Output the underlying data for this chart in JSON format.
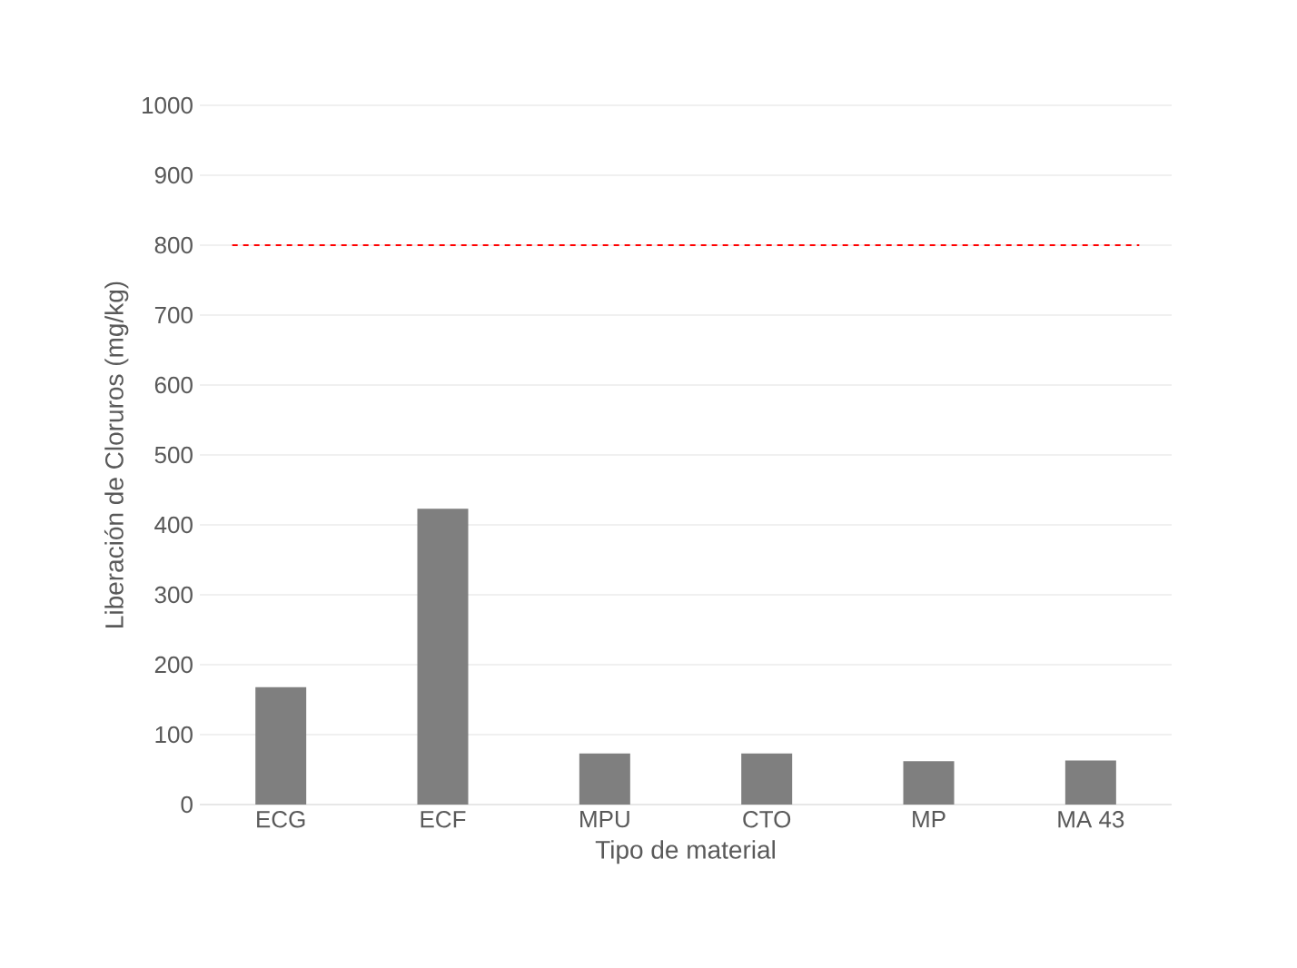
{
  "chart_data": {
    "type": "bar",
    "xlabel": "Tipo de material",
    "ylabel": "Liberación de Cloruros (mg/kg)",
    "categories": [
      "ECG",
      "ECF",
      "MPU",
      "CTO",
      "MP",
      "MA 43"
    ],
    "values": [
      168,
      423,
      73,
      73,
      62,
      63
    ],
    "color": "#7f7f7f",
    "ylim": [
      0,
      1000
    ],
    "yticks": [
      0,
      100,
      200,
      300,
      400,
      500,
      600,
      700,
      800,
      900,
      1000
    ],
    "grid": "y",
    "ref_lines": [
      {
        "axis": "y",
        "value": 800,
        "color": "#ff0000",
        "line_style": "dashed"
      }
    ]
  }
}
